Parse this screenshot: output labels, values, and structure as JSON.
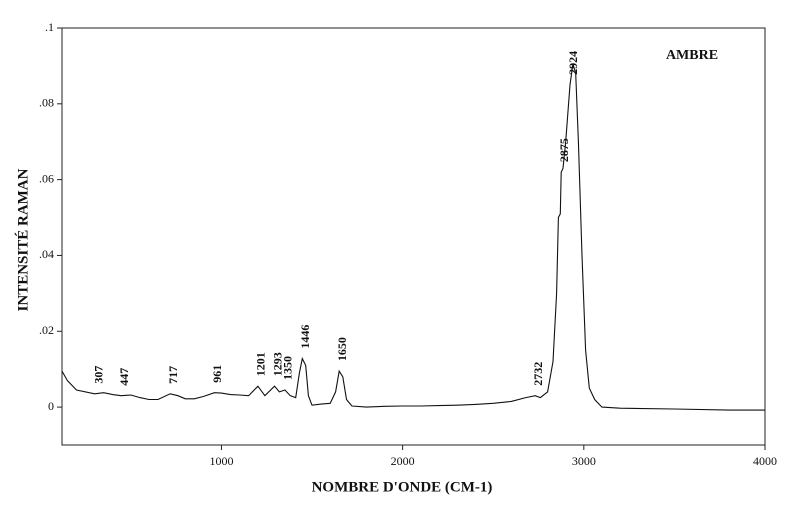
{
  "chart_data": {
    "type": "line",
    "title": "AMBRE",
    "x_label": "NOMBRE D'ONDE (CM-1)",
    "y_label": "INTENSITÉ RAMAN",
    "color": "#111111",
    "xlim": [
      120,
      4000
    ],
    "ylim": [
      -0.01,
      0.1
    ],
    "xticks": [
      1000,
      2000,
      3000,
      4000
    ],
    "yticks": [
      {
        "value": 0.1,
        "label": ".1"
      },
      {
        "value": 0.08,
        "label": ".08"
      },
      {
        "value": 0.06,
        "label": ".06"
      },
      {
        "value": 0.04,
        "label": ".04"
      },
      {
        "value": 0.02,
        "label": ".02"
      },
      0
    ],
    "peaks": [
      307,
      447,
      717,
      961,
      1201,
      1293,
      1350,
      1446,
      1650,
      2732,
      2875,
      2924
    ],
    "x": [
      120,
      150,
      200,
      300,
      350,
      400,
      447,
      500,
      550,
      600,
      650,
      717,
      760,
      800,
      850,
      900,
      961,
      1000,
      1050,
      1100,
      1150,
      1201,
      1240,
      1293,
      1320,
      1350,
      1380,
      1410,
      1430,
      1446,
      1465,
      1480,
      1500,
      1550,
      1600,
      1630,
      1650,
      1670,
      1690,
      1720,
      1800,
      1900,
      2000,
      2100,
      2200,
      2300,
      2400,
      2500,
      2600,
      2680,
      2732,
      2760,
      2800,
      2830,
      2850,
      2860,
      2870,
      2875,
      2885,
      2900,
      2924,
      2940,
      2955,
      2970,
      2990,
      3010,
      3030,
      3060,
      3100,
      3200,
      3500,
      3800,
      4000
    ],
    "y": [
      0.0095,
      0.007,
      0.0045,
      0.0035,
      0.0038,
      0.0033,
      0.003,
      0.0032,
      0.0025,
      0.002,
      0.002,
      0.0035,
      0.003,
      0.0022,
      0.0022,
      0.0028,
      0.0038,
      0.0037,
      0.0033,
      0.0032,
      0.003,
      0.0055,
      0.003,
      0.0055,
      0.004,
      0.0045,
      0.003,
      0.0025,
      0.009,
      0.0128,
      0.011,
      0.003,
      0.0005,
      0.0008,
      0.001,
      0.004,
      0.0095,
      0.008,
      0.002,
      0.0003,
      0.0,
      0.0002,
      0.0003,
      0.0003,
      0.0004,
      0.0005,
      0.0007,
      0.001,
      0.0015,
      0.0025,
      0.003,
      0.0025,
      0.004,
      0.012,
      0.03,
      0.05,
      0.051,
      0.062,
      0.063,
      0.07,
      0.085,
      0.0905,
      0.088,
      0.07,
      0.04,
      0.015,
      0.005,
      0.002,
      0.0,
      -0.0003,
      -0.0005,
      -0.0008,
      -0.0008
    ]
  }
}
